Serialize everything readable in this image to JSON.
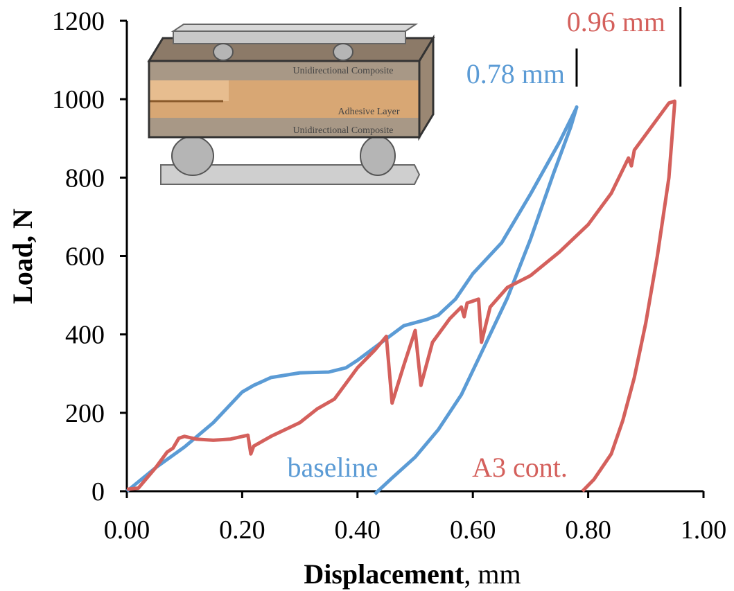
{
  "chart_data": {
    "type": "line",
    "xlabel": [
      "Displacement",
      ", mm"
    ],
    "ylabel": "Load, N",
    "xlim": [
      0,
      1
    ],
    "ylim": [
      0,
      1200
    ],
    "xticks": [
      {
        "value": 0,
        "label": "0.00"
      },
      {
        "value": 0.2,
        "label": "0.20"
      },
      {
        "value": 0.4,
        "label": "0.40"
      },
      {
        "value": 0.6,
        "label": "0.60"
      },
      {
        "value": 0.8,
        "label": "0.80"
      },
      {
        "value": 1,
        "label": "1.00"
      }
    ],
    "yticks": [
      0,
      200,
      400,
      600,
      800,
      1000,
      1200
    ],
    "series": [
      {
        "name": "baseline",
        "color": "#5b9bd5",
        "x": [
          0,
          0.05,
          0.1,
          0.15,
          0.2,
          0.22,
          0.25,
          0.3,
          0.35,
          0.38,
          0.4,
          0.44,
          0.48,
          0.52,
          0.54,
          0.57,
          0.6,
          0.65,
          0.7,
          0.75,
          0.78,
          0.78,
          0.77,
          0.74,
          0.7,
          0.66,
          0.62,
          0.58,
          0.54,
          0.5,
          0.46,
          0.43
        ],
        "values": [
          0,
          60,
          113,
          175,
          253,
          270,
          290,
          302,
          304,
          315,
          334,
          378,
          422,
          438,
          449,
          490,
          555,
          634,
          758,
          890,
          979,
          980,
          930,
          811,
          643,
          493,
          369,
          246,
          157,
          87,
          34,
          -7
        ]
      },
      {
        "name": "A3 cont.",
        "color": "#d4605c",
        "x": [
          0,
          0.02,
          0.05,
          0.07,
          0.08,
          0.09,
          0.1,
          0.12,
          0.15,
          0.18,
          0.21,
          0.215,
          0.22,
          0.25,
          0.3,
          0.33,
          0.36,
          0.4,
          0.43,
          0.45,
          0.46,
          0.48,
          0.5,
          0.51,
          0.53,
          0.56,
          0.58,
          0.585,
          0.59,
          0.61,
          0.615,
          0.63,
          0.66,
          0.7,
          0.75,
          0.8,
          0.84,
          0.87,
          0.875,
          0.88,
          0.91,
          0.94,
          0.95,
          0.95,
          0.94,
          0.92,
          0.9,
          0.88,
          0.86,
          0.84,
          0.81,
          0.79
        ],
        "values": [
          5,
          8,
          60,
          100,
          110,
          135,
          140,
          133,
          130,
          133,
          143,
          95,
          115,
          140,
          175,
          210,
          235,
          315,
          360,
          395,
          225,
          320,
          410,
          270,
          380,
          440,
          470,
          445,
          480,
          490,
          380,
          470,
          520,
          550,
          610,
          680,
          760,
          850,
          830,
          870,
          930,
          990,
          995,
          990,
          800,
          600,
          430,
          290,
          180,
          95,
          30,
          0
        ]
      }
    ],
    "markers": [
      {
        "text": "0.78 mm",
        "x": 0.78
      },
      {
        "text": "0.96 mm",
        "x": 0.96
      }
    ],
    "inset_labels": [
      "Unidirectional Composite",
      "Adhesive Layer",
      "Unidirectional Composite"
    ]
  }
}
